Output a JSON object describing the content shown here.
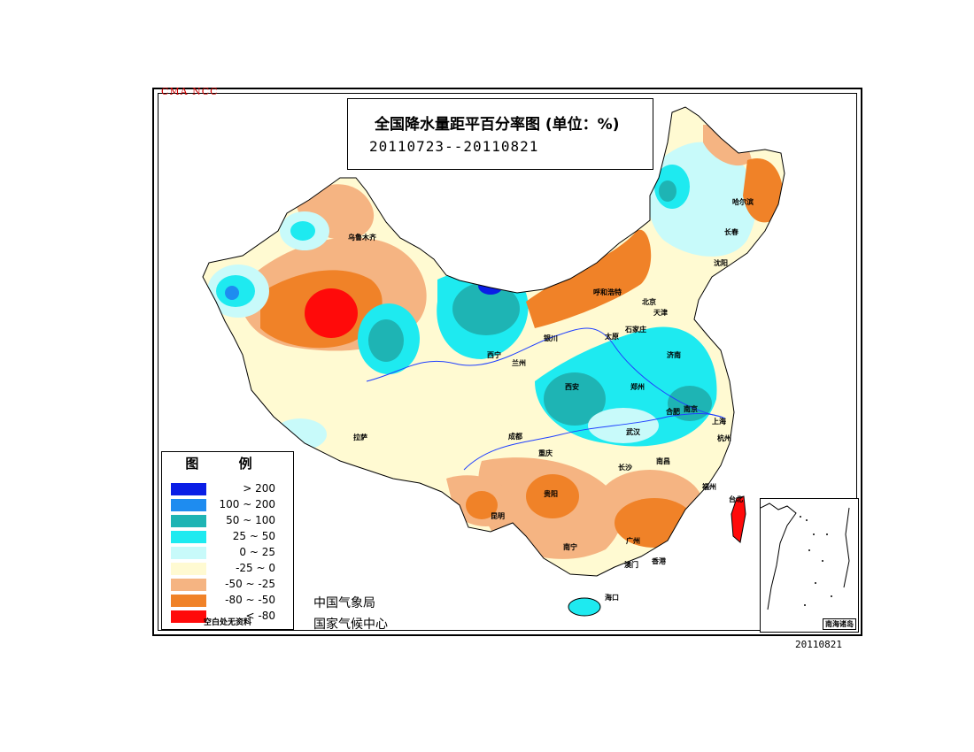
{
  "agency_mark": "CMA NCC",
  "title": "全国降水量距平百分率图 (单位：%)",
  "date_range": "20110723--20110821",
  "legend": {
    "title": "图 例",
    "items": [
      {
        "label": "> 200",
        "color": "#0a1ee6"
      },
      {
        "label": "100 ~ 200",
        "color": "#1e8cf0"
      },
      {
        "label": "50 ~ 100",
        "color": "#1eb4b4"
      },
      {
        "label": "25 ~ 50",
        "color": "#1eeaf0"
      },
      {
        "label": "0 ~ 25",
        "color": "#c8fafa"
      },
      {
        "label": "-25 ~ 0",
        "color": "#fffad2"
      },
      {
        "label": "-50 ~ -25",
        "color": "#f5b482"
      },
      {
        "label": "-80 ~ -50",
        "color": "#f08228"
      },
      {
        "label": "< -80",
        "color": "#ff0a0a"
      }
    ],
    "note": "空白处无资料"
  },
  "org_lines": [
    "中国气象局",
    "国家气候中心"
  ],
  "inset_label": "南海诸岛",
  "issue_date": "20110821",
  "cities": [
    "乌鲁木齐",
    "哈尔滨",
    "长春",
    "沈阳",
    "呼和浩特",
    "北京",
    "天津",
    "石家庄",
    "太原",
    "济南",
    "银川",
    "兰州",
    "西宁",
    "西安",
    "郑州",
    "合肥",
    "南京",
    "上海",
    "杭州",
    "武汉",
    "成都",
    "重庆",
    "拉萨",
    "长沙",
    "南昌",
    "福州",
    "台北",
    "贵阳",
    "昆明",
    "南宁",
    "广州",
    "澳门",
    "香港",
    "海口"
  ]
}
